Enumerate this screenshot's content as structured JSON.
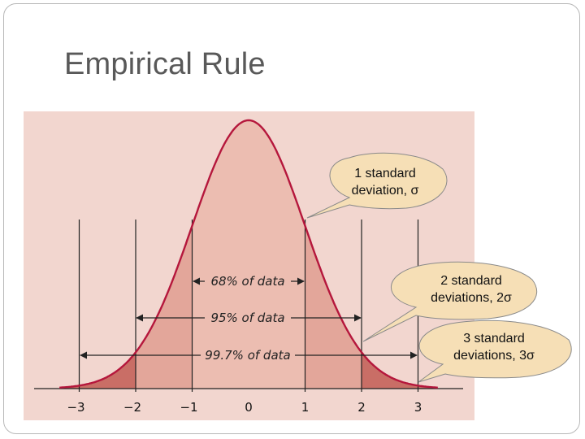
{
  "slide": {
    "title": "Empirical Rule"
  },
  "diagram": {
    "colors": {
      "background": "#f2d6cf",
      "band_1sd": "#ecbdb1",
      "band_2sd": "#e3a69a",
      "band_3sd": "#c96e66",
      "curve": "#b5173c",
      "callout_fill": "#f6dfb6",
      "callout_stroke": "#8a8a8a"
    },
    "x_ticks": [
      "−3",
      "−2",
      "−1",
      "0",
      "1",
      "2",
      "3"
    ],
    "range_labels": {
      "one_sd": "68% of data",
      "two_sd": "95% of data",
      "three_sd": "99.7% of data"
    },
    "callouts": {
      "one_sd": {
        "line1": "1 standard",
        "line2": "deviation, σ"
      },
      "two_sd": {
        "line1": "2 standard",
        "line2": "deviations, 2σ"
      },
      "three_sd": {
        "line1": "3 standard",
        "line2": "deviations, 3σ"
      }
    }
  }
}
